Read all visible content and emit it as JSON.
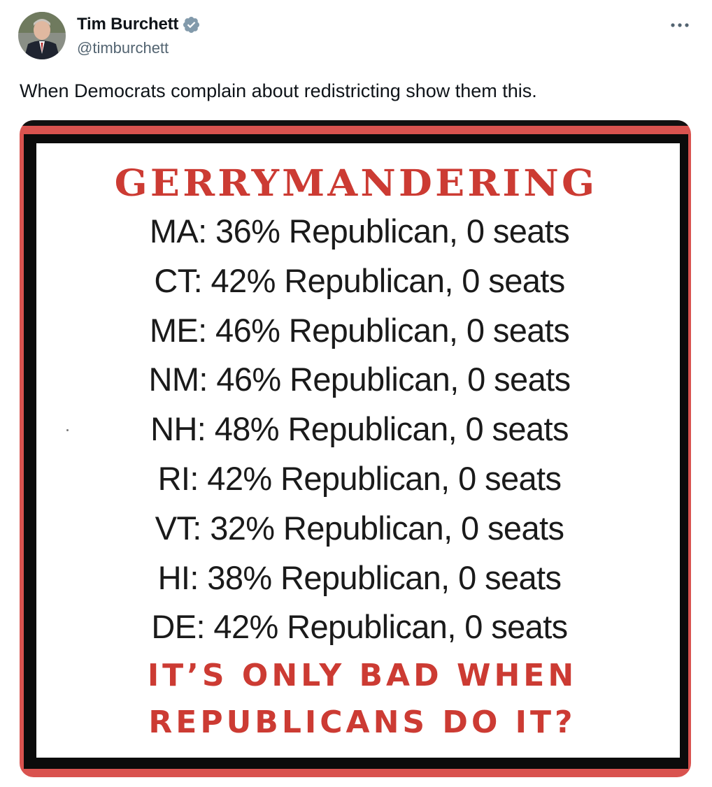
{
  "tweet": {
    "author": {
      "name": "Tim Burchett",
      "handle": "@timburchett",
      "verified": true
    },
    "more_icon": "more-horizontal-icon",
    "text": "When Democrats complain about redistricting show them this."
  },
  "image": {
    "title": "GERRYMANDERING",
    "lines": [
      "MA: 36% Republican, 0 seats",
      "CT: 42% Republican, 0 seats",
      "ME: 46% Republican, 0 seats",
      "NM: 46% Republican, 0 seats",
      "NH: 48% Republican, 0 seats",
      "RI: 42% Republican, 0 seats",
      "VT: 32% Republican, 0 seats",
      "HI: 38% Republican, 0 seats",
      "DE: 42% Republican, 0 seats"
    ],
    "tagline_line1": "IT’S ONLY BAD WHEN",
    "tagline_line2": "REPUBLICANS DO IT?",
    "colors": {
      "accent_red": "#cc3b33",
      "frame_black": "#0b0b0b"
    }
  },
  "colors": {
    "verified_blue": "#829aab",
    "secondary_text": "#536471",
    "primary_text": "#0f1419"
  }
}
